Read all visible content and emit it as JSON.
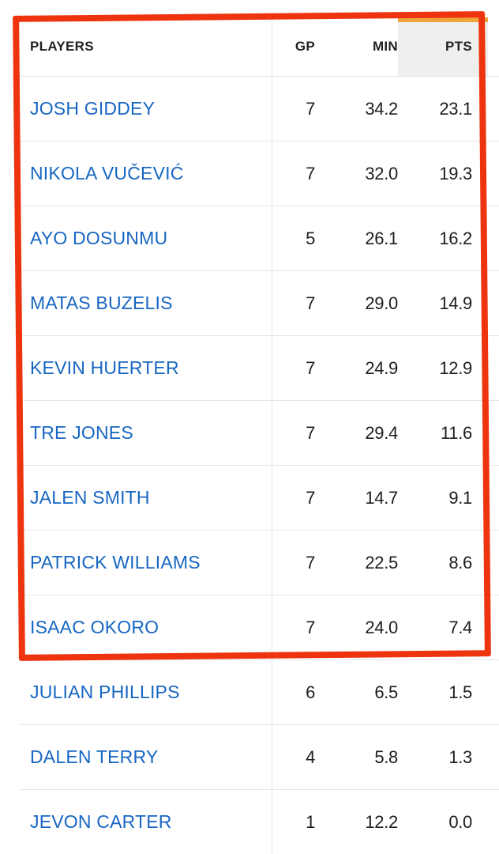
{
  "table": {
    "columns": [
      {
        "key": "players",
        "label": "PLAYERS"
      },
      {
        "key": "gp",
        "label": "GP"
      },
      {
        "key": "min",
        "label": "MIN"
      },
      {
        "key": "pts",
        "label": "PTS"
      }
    ],
    "sorted_column": "PTS",
    "players": [
      {
        "name": "JOSH GIDDEY",
        "gp": "7",
        "min": "34.2",
        "pts": "23.1"
      },
      {
        "name": "NIKOLA VUČEVIĆ",
        "gp": "7",
        "min": "32.0",
        "pts": "19.3"
      },
      {
        "name": "AYO DOSUNMU",
        "gp": "5",
        "min": "26.1",
        "pts": "16.2"
      },
      {
        "name": "MATAS BUZELIS",
        "gp": "7",
        "min": "29.0",
        "pts": "14.9"
      },
      {
        "name": "KEVIN HUERTER",
        "gp": "7",
        "min": "24.9",
        "pts": "12.9"
      },
      {
        "name": "TRE JONES",
        "gp": "7",
        "min": "29.4",
        "pts": "11.6"
      },
      {
        "name": "JALEN SMITH",
        "gp": "7",
        "min": "14.7",
        "pts": "9.1"
      },
      {
        "name": "PATRICK WILLIAMS",
        "gp": "7",
        "min": "22.5",
        "pts": "8.6"
      },
      {
        "name": "ISAAC OKORO",
        "gp": "7",
        "min": "24.0",
        "pts": "7.4"
      },
      {
        "name": "JULIAN PHILLIPS",
        "gp": "6",
        "min": "6.5",
        "pts": "1.5"
      },
      {
        "name": "DALEN TERRY",
        "gp": "4",
        "min": "5.8",
        "pts": "1.3"
      },
      {
        "name": "JEVON CARTER",
        "gp": "1",
        "min": "12.2",
        "pts": "0.0"
      }
    ]
  },
  "annotation": {
    "type": "highlight-box",
    "rows_enclosed": 9,
    "color": "#ee340e"
  },
  "colors": {
    "link_blue": "#1766c2",
    "sort_accent_orange": "#f0a43c",
    "sorted_header_bg": "#efefed",
    "row_separator": "#e6e6e6",
    "header_text": "#222222",
    "number_text": "#1d1d1d"
  }
}
